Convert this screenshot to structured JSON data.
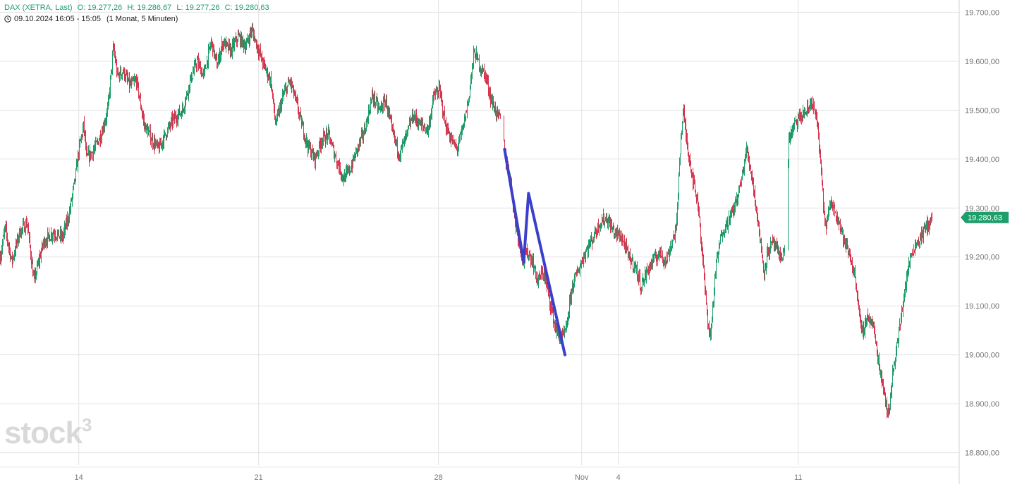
{
  "header": {
    "instrument": "DAX (XETRA, Last)",
    "open": "O: 19.277,26",
    "high": "H: 19.286,67",
    "low": "L: 19.277,26",
    "close": "C: 19.280,63",
    "range": "09.10.2024 16:05 - 15:05",
    "interval": "(1 Monat, 5 Minuten)"
  },
  "watermark": {
    "text": "stock",
    "sup": "3"
  },
  "colors": {
    "up": "#1e9e6a",
    "down": "#d7354f",
    "grid": "#e3e3e3",
    "axis_text": "#777777",
    "price_tag": "#1e9e6a",
    "drawing": "#3b3fc9"
  },
  "chart_data": {
    "type": "candlestick",
    "ylim": [
      18775,
      19725
    ],
    "y_ticks": [
      "19.700,00",
      "19.600,00",
      "19.500,00",
      "19.400,00",
      "19.300,00",
      "19.200,00",
      "19.100,00",
      "19.000,00",
      "18.900,00",
      "18.800,00"
    ],
    "y_tick_values": [
      19700,
      19600,
      19500,
      19400,
      19300,
      19200,
      19100,
      19000,
      18900,
      18800
    ],
    "x_ticks": [
      {
        "label": "14",
        "pos": 0.0821
      },
      {
        "label": "21",
        "pos": 0.2696
      },
      {
        "label": "28",
        "pos": 0.4571
      },
      {
        "label": "Nov",
        "pos": 0.6064
      },
      {
        "label": "4",
        "pos": 0.6446
      },
      {
        "label": "11",
        "pos": 0.8321
      }
    ],
    "last_price": 19280.63,
    "last_price_label": "19.280,63",
    "price_path": [
      [
        0.0,
        19200
      ],
      [
        0.005,
        19260
      ],
      [
        0.012,
        19190
      ],
      [
        0.02,
        19250
      ],
      [
        0.028,
        19270
      ],
      [
        0.035,
        19150
      ],
      [
        0.045,
        19230
      ],
      [
        0.055,
        19250
      ],
      [
        0.065,
        19240
      ],
      [
        0.072,
        19290
      ],
      [
        0.078,
        19360
      ],
      [
        0.082,
        19420
      ],
      [
        0.087,
        19470
      ],
      [
        0.09,
        19400
      ],
      [
        0.098,
        19420
      ],
      [
        0.105,
        19450
      ],
      [
        0.112,
        19500
      ],
      [
        0.118,
        19630
      ],
      [
        0.122,
        19570
      ],
      [
        0.128,
        19580
      ],
      [
        0.135,
        19550
      ],
      [
        0.142,
        19560
      ],
      [
        0.15,
        19470
      ],
      [
        0.158,
        19440
      ],
      [
        0.165,
        19420
      ],
      [
        0.172,
        19450
      ],
      [
        0.18,
        19480
      ],
      [
        0.19,
        19500
      ],
      [
        0.198,
        19560
      ],
      [
        0.205,
        19600
      ],
      [
        0.212,
        19570
      ],
      [
        0.22,
        19640
      ],
      [
        0.226,
        19590
      ],
      [
        0.232,
        19640
      ],
      [
        0.24,
        19620
      ],
      [
        0.248,
        19650
      ],
      [
        0.256,
        19630
      ],
      [
        0.262,
        19665
      ],
      [
        0.268,
        19630
      ],
      [
        0.275,
        19590
      ],
      [
        0.282,
        19560
      ],
      [
        0.287,
        19470
      ],
      [
        0.295,
        19530
      ],
      [
        0.302,
        19560
      ],
      [
        0.308,
        19520
      ],
      [
        0.313,
        19480
      ],
      [
        0.32,
        19430
      ],
      [
        0.328,
        19400
      ],
      [
        0.335,
        19440
      ],
      [
        0.342,
        19450
      ],
      [
        0.35,
        19400
      ],
      [
        0.358,
        19360
      ],
      [
        0.365,
        19380
      ],
      [
        0.372,
        19420
      ],
      [
        0.38,
        19460
      ],
      [
        0.388,
        19530
      ],
      [
        0.395,
        19500
      ],
      [
        0.402,
        19520
      ],
      [
        0.408,
        19460
      ],
      [
        0.416,
        19410
      ],
      [
        0.424,
        19450
      ],
      [
        0.43,
        19490
      ],
      [
        0.438,
        19470
      ],
      [
        0.446,
        19460
      ],
      [
        0.452,
        19530
      ],
      [
        0.458,
        19540
      ],
      [
        0.464,
        19470
      ],
      [
        0.47,
        19440
      ],
      [
        0.476,
        19420
      ],
      [
        0.482,
        19460
      ],
      [
        0.488,
        19520
      ],
      [
        0.494,
        19620
      ],
      [
        0.5,
        19590
      ],
      [
        0.506,
        19570
      ],
      [
        0.512,
        19520
      ],
      [
        0.518,
        19490
      ],
      [
        0.522,
        19480
      ],
      [
        0.527,
        19400
      ],
      [
        0.532,
        19360
      ],
      [
        0.536,
        19280
      ],
      [
        0.54,
        19240
      ],
      [
        0.545,
        19190
      ],
      [
        0.55,
        19210
      ],
      [
        0.555,
        19190
      ],
      [
        0.56,
        19150
      ],
      [
        0.566,
        19170
      ],
      [
        0.572,
        19120
      ],
      [
        0.578,
        19060
      ],
      [
        0.584,
        19030
      ],
      [
        0.59,
        19050
      ],
      [
        0.596,
        19140
      ],
      [
        0.602,
        19170
      ],
      [
        0.61,
        19210
      ],
      [
        0.618,
        19240
      ],
      [
        0.625,
        19270
      ],
      [
        0.632,
        19280
      ],
      [
        0.64,
        19250
      ],
      [
        0.648,
        19240
      ],
      [
        0.655,
        19200
      ],
      [
        0.662,
        19180
      ],
      [
        0.668,
        19140
      ],
      [
        0.674,
        19170
      ],
      [
        0.68,
        19190
      ],
      [
        0.688,
        19210
      ],
      [
        0.694,
        19190
      ],
      [
        0.7,
        19230
      ],
      [
        0.705,
        19260
      ],
      [
        0.708,
        19400
      ],
      [
        0.712,
        19500
      ],
      [
        0.716,
        19430
      ],
      [
        0.722,
        19360
      ],
      [
        0.728,
        19300
      ],
      [
        0.732,
        19200
      ],
      [
        0.736,
        19100
      ],
      [
        0.74,
        19030
      ],
      [
        0.746,
        19180
      ],
      [
        0.752,
        19250
      ],
      [
        0.758,
        19270
      ],
      [
        0.765,
        19300
      ],
      [
        0.772,
        19350
      ],
      [
        0.778,
        19420
      ],
      [
        0.784,
        19360
      ],
      [
        0.79,
        19270
      ],
      [
        0.796,
        19170
      ],
      [
        0.8,
        19210
      ],
      [
        0.806,
        19230
      ],
      [
        0.812,
        19200
      ],
      [
        0.818,
        19210
      ],
      [
        0.822,
        19440
      ],
      [
        0.828,
        19470
      ],
      [
        0.836,
        19490
      ],
      [
        0.842,
        19500
      ],
      [
        0.846,
        19520
      ],
      [
        0.852,
        19470
      ],
      [
        0.86,
        19260
      ],
      [
        0.866,
        19310
      ],
      [
        0.872,
        19290
      ],
      [
        0.88,
        19230
      ],
      [
        0.886,
        19200
      ],
      [
        0.892,
        19150
      ],
      [
        0.898,
        19040
      ],
      [
        0.904,
        19080
      ],
      [
        0.91,
        19060
      ],
      [
        0.916,
        18980
      ],
      [
        0.922,
        18920
      ],
      [
        0.926,
        18870
      ],
      [
        0.93,
        18960
      ],
      [
        0.934,
        19010
      ],
      [
        0.938,
        19060
      ],
      [
        0.942,
        19120
      ],
      [
        0.946,
        19170
      ],
      [
        0.95,
        19210
      ],
      [
        0.956,
        19230
      ],
      [
        0.962,
        19250
      ],
      [
        0.968,
        19270
      ],
      [
        0.972,
        19280
      ]
    ],
    "gaps_after": [
      0.522,
      0.818
    ],
    "drawing_points": [
      [
        19420,
        0.526
      ],
      [
        19190,
        0.546
      ],
      [
        19330,
        0.551
      ],
      [
        19000,
        0.589
      ]
    ],
    "grid": true
  }
}
